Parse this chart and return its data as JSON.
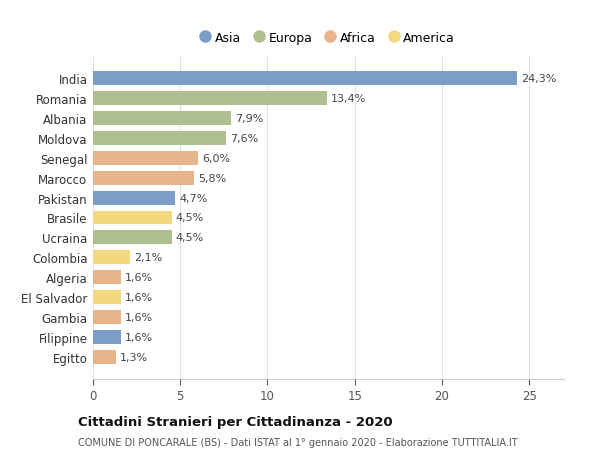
{
  "countries": [
    "India",
    "Romania",
    "Albania",
    "Moldova",
    "Senegal",
    "Marocco",
    "Pakistan",
    "Brasile",
    "Ucraina",
    "Colombia",
    "Algeria",
    "El Salvador",
    "Gambia",
    "Filippine",
    "Egitto"
  ],
  "values": [
    24.3,
    13.4,
    7.9,
    7.6,
    6.0,
    5.8,
    4.7,
    4.5,
    4.5,
    2.1,
    1.6,
    1.6,
    1.6,
    1.6,
    1.3
  ],
  "labels": [
    "24,3%",
    "13,4%",
    "7,9%",
    "7,6%",
    "6,0%",
    "5,8%",
    "4,7%",
    "4,5%",
    "4,5%",
    "2,1%",
    "1,6%",
    "1,6%",
    "1,6%",
    "1,6%",
    "1,3%"
  ],
  "continents": [
    "Asia",
    "Europa",
    "Europa",
    "Europa",
    "Africa",
    "Africa",
    "Asia",
    "America",
    "Europa",
    "America",
    "Africa",
    "America",
    "Africa",
    "Asia",
    "Africa"
  ],
  "continent_colors": {
    "Asia": "#7b9ec9",
    "Europa": "#afc08e",
    "Africa": "#e8b48a",
    "America": "#f2d87e"
  },
  "legend_order": [
    "Asia",
    "Europa",
    "Africa",
    "America"
  ],
  "xlim": [
    0,
    27
  ],
  "xticks": [
    0,
    5,
    10,
    15,
    20,
    25
  ],
  "title": "Cittadini Stranieri per Cittadinanza - 2020",
  "subtitle": "COMUNE DI PONCARALE (BS) - Dati ISTAT al 1° gennaio 2020 - Elaborazione TUTTITALIA.IT",
  "bg_color": "#ffffff",
  "grid_color": "#e0e0e0",
  "bar_height": 0.7
}
